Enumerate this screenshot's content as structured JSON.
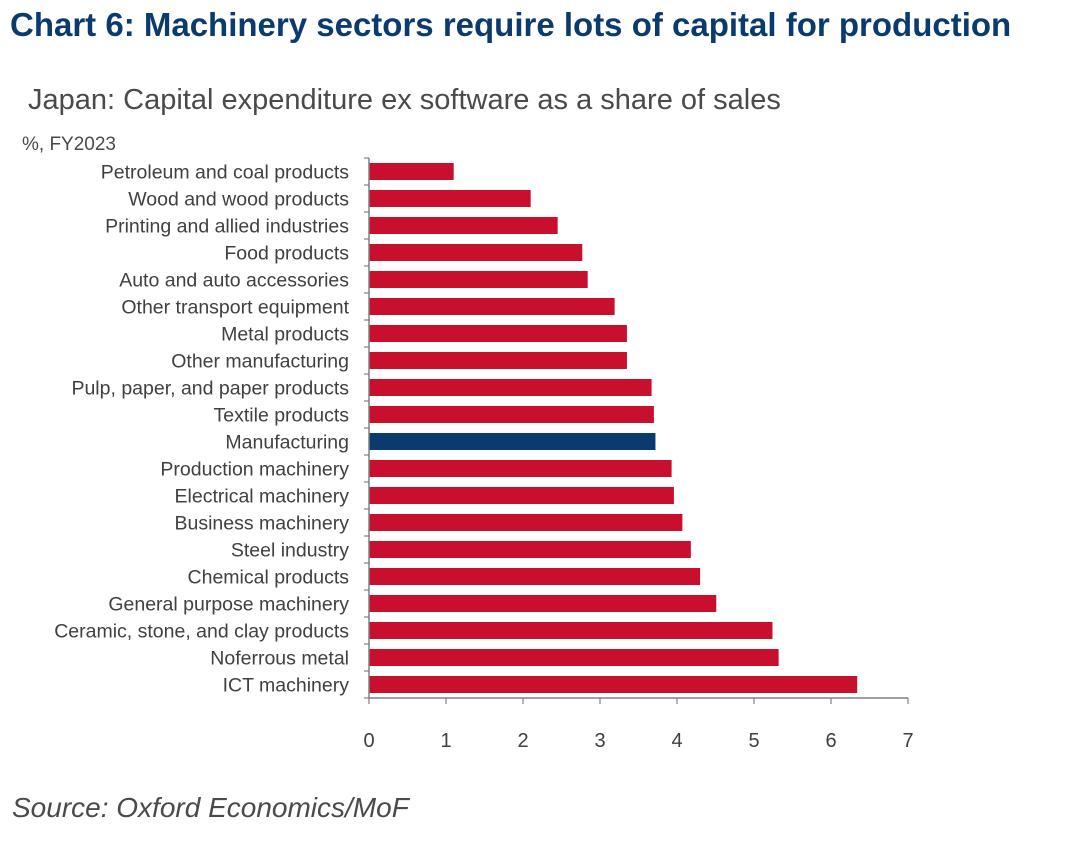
{
  "header": {
    "title": "Chart 6: Machinery sectors require lots of capital for production",
    "subtitle": "Japan: Capital expenditure ex software as a share of sales",
    "unit": "%, FY2023"
  },
  "footer": {
    "source": "Source: Oxford Economics/MoF"
  },
  "colors": {
    "bar": "#c8102e",
    "highlight": "#0b3a6e",
    "axis": "#808080"
  },
  "chart_data": {
    "type": "bar",
    "orientation": "horizontal",
    "title": "Japan: Capital expenditure ex software as a share of sales",
    "unit": "%, FY2023",
    "xlim": [
      0,
      7
    ],
    "x_ticks": [
      0,
      1,
      2,
      3,
      4,
      5,
      6,
      7
    ],
    "grid": false,
    "highlight_category": "Manufacturing",
    "categories": [
      "Petroleum and coal products",
      "Wood and wood products",
      "Printing and allied industries",
      "Food products",
      "Auto and auto accessories",
      "Other transport equipment",
      "Metal products",
      "Other manufacturing",
      "Pulp, paper, and paper products",
      "Textile products",
      "Manufacturing",
      "Production machinery",
      "Electrical machinery",
      "Business machinery",
      "Steel industry",
      "Chemical products",
      "General purpose machinery",
      "Ceramic, stone, and clay products",
      "Noferrous metal",
      "ICT machinery"
    ],
    "values": [
      1.1,
      2.1,
      2.45,
      2.77,
      2.84,
      3.19,
      3.35,
      3.35,
      3.67,
      3.7,
      3.72,
      3.93,
      3.96,
      4.07,
      4.18,
      4.3,
      4.51,
      5.24,
      5.32,
      6.34
    ]
  }
}
